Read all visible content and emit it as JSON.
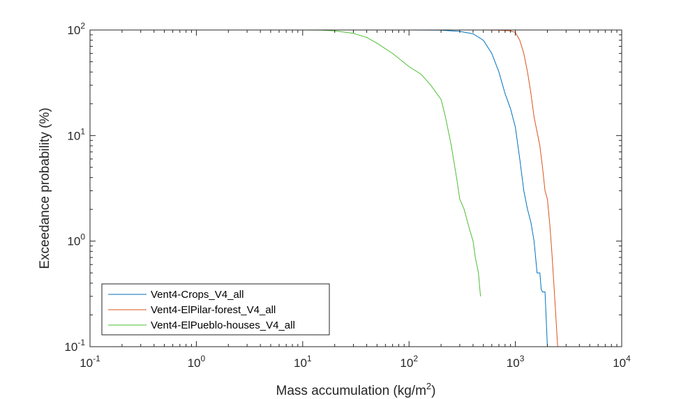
{
  "chart_data": {
    "type": "line",
    "xscale": "log",
    "yscale": "log",
    "xlim": [
      0.1,
      10000
    ],
    "ylim": [
      0.1,
      100
    ],
    "grid": false,
    "legend_position": "bottom-left",
    "xlabel_text": "Mass accumulation (kg/m",
    "xlabel_sup": "2",
    "xlabel_close": ")",
    "ylabel": "Exceedance probability (%)",
    "x_ticks": [
      {
        "value": 0.1,
        "base": "10",
        "exp": "-1"
      },
      {
        "value": 1,
        "base": "10",
        "exp": "0"
      },
      {
        "value": 10,
        "base": "10",
        "exp": "1"
      },
      {
        "value": 100,
        "base": "10",
        "exp": "2"
      },
      {
        "value": 1000,
        "base": "10",
        "exp": "3"
      },
      {
        "value": 10000,
        "base": "10",
        "exp": "4"
      }
    ],
    "y_ticks": [
      {
        "value": 0.1,
        "base": "10",
        "exp": "-1"
      },
      {
        "value": 1,
        "base": "10",
        "exp": "0"
      },
      {
        "value": 10,
        "base": "10",
        "exp": "1"
      },
      {
        "value": 100,
        "base": "10",
        "exp": "2"
      }
    ],
    "series": [
      {
        "name": "Vent4-Crops_V4_all",
        "color": "#0072BD",
        "points": [
          [
            0.1,
            100
          ],
          [
            100,
            100
          ],
          [
            200,
            99.5
          ],
          [
            300,
            97
          ],
          [
            400,
            92
          ],
          [
            500,
            80
          ],
          [
            600,
            60
          ],
          [
            700,
            40
          ],
          [
            800,
            25
          ],
          [
            900,
            18
          ],
          [
            1000,
            12
          ],
          [
            1100,
            6
          ],
          [
            1200,
            3
          ],
          [
            1300,
            2
          ],
          [
            1400,
            1.5
          ],
          [
            1500,
            1.0
          ],
          [
            1550,
            0.7
          ],
          [
            1600,
            0.5
          ],
          [
            1700,
            0.5
          ],
          [
            1750,
            0.35
          ],
          [
            1800,
            0.33
          ],
          [
            1900,
            0.33
          ],
          [
            2000,
            0.1
          ]
        ]
      },
      {
        "name": "Vent4-ElPilar-forest_V4_all",
        "color": "#D95319",
        "points": [
          [
            0.1,
            100
          ],
          [
            500,
            100
          ],
          [
            700,
            99.5
          ],
          [
            900,
            98
          ],
          [
            1000,
            95
          ],
          [
            1100,
            80
          ],
          [
            1200,
            60
          ],
          [
            1300,
            40
          ],
          [
            1400,
            25
          ],
          [
            1500,
            15
          ],
          [
            1700,
            8
          ],
          [
            1800,
            5
          ],
          [
            1900,
            3
          ],
          [
            2000,
            2.5
          ],
          [
            2100,
            1.5
          ],
          [
            2200,
            0.8
          ],
          [
            2300,
            0.4
          ],
          [
            2400,
            0.2
          ],
          [
            2500,
            0.1
          ]
        ]
      },
      {
        "name": "Vent4-ElPueblo-houses_V4_all",
        "color": "#4DBD33",
        "points": [
          [
            0.1,
            100
          ],
          [
            10,
            100
          ],
          [
            15,
            99.5
          ],
          [
            20,
            98
          ],
          [
            30,
            93
          ],
          [
            40,
            85
          ],
          [
            50,
            75
          ],
          [
            70,
            60
          ],
          [
            100,
            45
          ],
          [
            130,
            38
          ],
          [
            160,
            30
          ],
          [
            200,
            22
          ],
          [
            220,
            15
          ],
          [
            250,
            8
          ],
          [
            280,
            4
          ],
          [
            300,
            2.5
          ],
          [
            330,
            2
          ],
          [
            350,
            1.6
          ],
          [
            370,
            1.3
          ],
          [
            400,
            1
          ],
          [
            420,
            0.7
          ],
          [
            450,
            0.5
          ],
          [
            470,
            0.3
          ]
        ]
      }
    ]
  }
}
